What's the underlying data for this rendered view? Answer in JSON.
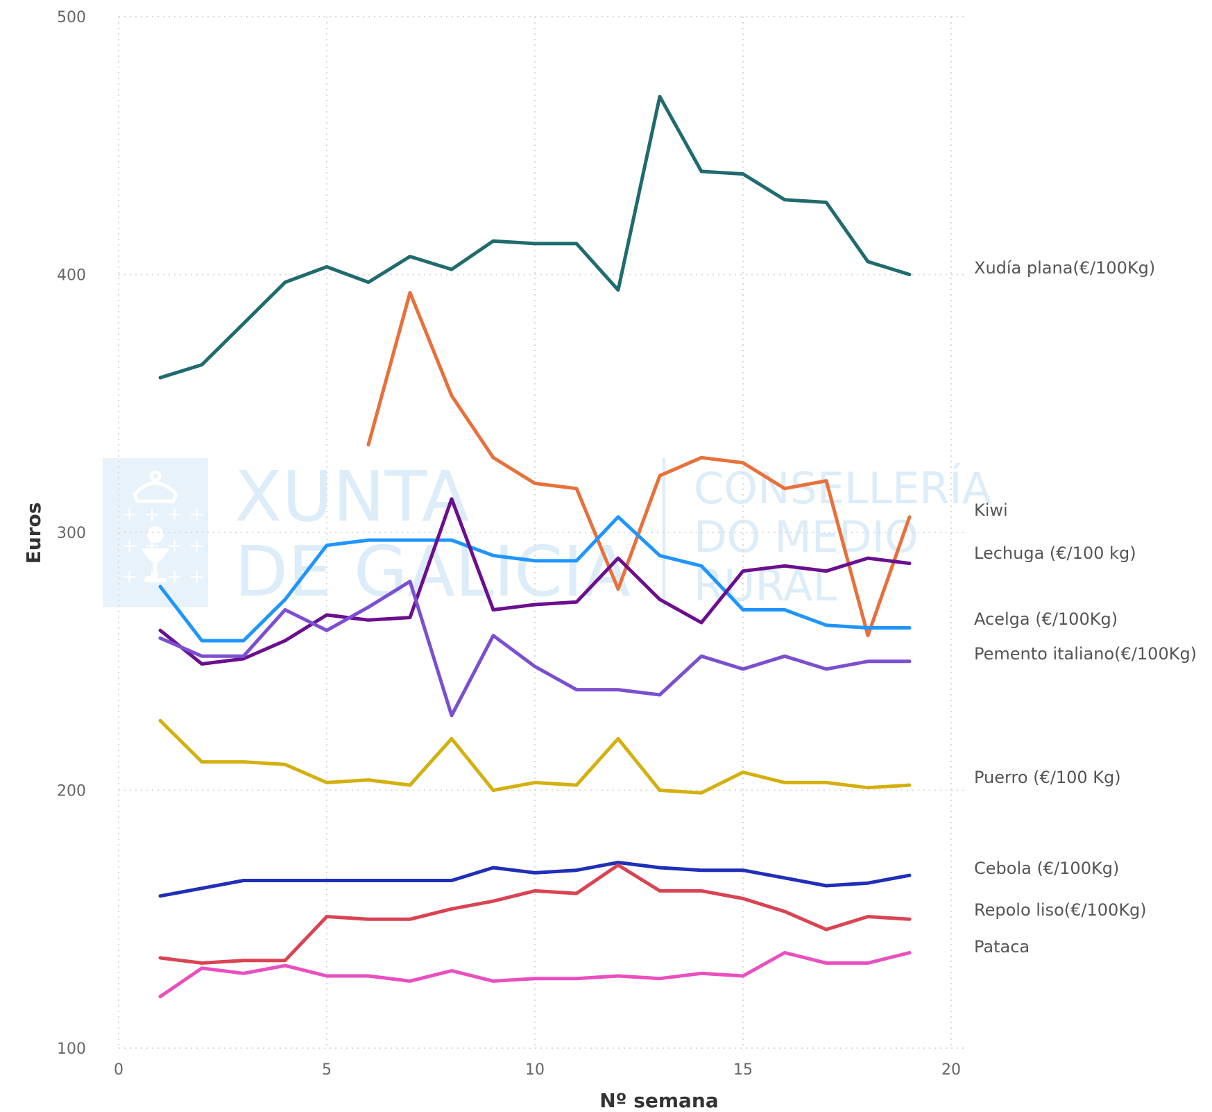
{
  "watermark": {
    "org_line1": "XUNTA",
    "org_line2": "DE GALICIA",
    "dept_line1": "CONSELLERÍA",
    "dept_line2": "DO MEDIO",
    "dept_line3": "RURAL",
    "color": "#dcecf8"
  },
  "chart_data": {
    "type": "line",
    "xlabel": "Nº semana",
    "ylabel": "Euros",
    "xlim": [
      0,
      20
    ],
    "ylim": [
      100,
      500
    ],
    "x_ticks": [
      0,
      5,
      10,
      15,
      20
    ],
    "y_ticks": [
      100,
      200,
      300,
      400,
      500
    ],
    "grid": "dotted",
    "legend": "labels at line ends, right",
    "x": [
      1,
      2,
      3,
      4,
      5,
      6,
      7,
      8,
      9,
      10,
      11,
      12,
      13,
      14,
      15,
      16,
      17,
      18,
      19
    ],
    "series": [
      {
        "name": "Xudía plana(€/100Kg)",
        "color": "#1f6b6e",
        "values": [
          360,
          365,
          381,
          397,
          403,
          397,
          407,
          402,
          413,
          412,
          412,
          394,
          469,
          440,
          439,
          429,
          428,
          405,
          400
        ]
      },
      {
        "name": "Kiwi",
        "color": "#e8703a",
        "values": [
          null,
          null,
          null,
          null,
          null,
          334,
          393,
          353,
          329,
          319,
          317,
          278,
          322,
          329,
          327,
          317,
          320,
          260,
          306
        ]
      },
      {
        "name": "Lechuga (€/100 kg)",
        "color": "#1f95ff",
        "values": [
          279,
          258,
          258,
          274,
          295,
          297,
          297,
          297,
          291,
          289,
          289,
          306,
          291,
          287,
          270,
          270,
          264,
          263,
          263
        ]
      },
      {
        "name": "Acelga (€/100Kg)",
        "color": "#6a0f8e",
        "values": [
          262,
          249,
          251,
          258,
          268,
          266,
          267,
          313,
          270,
          272,
          273,
          290,
          274,
          265,
          285,
          287,
          285,
          290,
          288
        ]
      },
      {
        "name": "Pemento italiano(€/100Kg)",
        "color": "#7b4fd0",
        "values": [
          259,
          252,
          252,
          270,
          262,
          271,
          281,
          229,
          260,
          248,
          239,
          239,
          237,
          252,
          247,
          252,
          247,
          250,
          250
        ]
      },
      {
        "name": "Puerro (€/100 Kg)",
        "color": "#d4b00f",
        "values": [
          227,
          211,
          211,
          210,
          203,
          204,
          202,
          220,
          200,
          203,
          202,
          220,
          200,
          199,
          207,
          203,
          203,
          201,
          202
        ]
      },
      {
        "name": "Cebola (€/100Kg)",
        "color": "#1f2fb8",
        "values": [
          159,
          162,
          165,
          165,
          165,
          165,
          165,
          165,
          170,
          168,
          169,
          172,
          170,
          169,
          169,
          166,
          163,
          164,
          167
        ]
      },
      {
        "name": "Repolo liso(€/100Kg)",
        "color": "#d94452",
        "values": [
          135,
          133,
          134,
          134,
          151,
          150,
          150,
          154,
          157,
          161,
          160,
          171,
          161,
          161,
          158,
          153,
          146,
          151,
          150
        ]
      },
      {
        "name": "Pataca",
        "color": "#e94fbf",
        "values": [
          120,
          131,
          129,
          132,
          128,
          128,
          126,
          130,
          126,
          127,
          127,
          128,
          127,
          129,
          128,
          137,
          133,
          133,
          137
        ]
      }
    ]
  }
}
